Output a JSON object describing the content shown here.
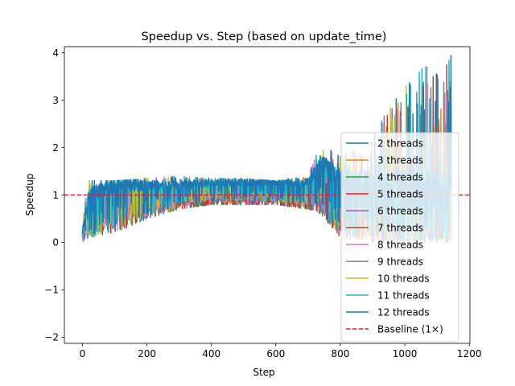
{
  "chart_data": {
    "type": "line",
    "title": "Speedup vs. Step (based on update_time)",
    "xlabel": "Step",
    "ylabel": "Speedup",
    "xlim": [
      -56,
      1202
    ],
    "ylim": [
      -2.13,
      4.13
    ],
    "xticks": [
      0,
      200,
      400,
      600,
      800,
      1000,
      1200
    ],
    "yticks": [
      -2,
      -1,
      0,
      1,
      2,
      3,
      4
    ],
    "grid": false,
    "legend_position": "lower-right",
    "steps": 1145,
    "series": [
      {
        "name": "2 threads",
        "color": "#1f77b4"
      },
      {
        "name": "3 threads",
        "color": "#ff7f0e"
      },
      {
        "name": "4 threads",
        "color": "#2ca02c"
      },
      {
        "name": "5 threads",
        "color": "#d62728"
      },
      {
        "name": "6 threads",
        "color": "#9467bd"
      },
      {
        "name": "7 threads",
        "color": "#8c564b"
      },
      {
        "name": "8 threads",
        "color": "#e377c2"
      },
      {
        "name": "9 threads",
        "color": "#7f7f7f"
      },
      {
        "name": "10 threads",
        "color": "#bcbd22"
      },
      {
        "name": "11 threads",
        "color": "#17becf"
      },
      {
        "name": "12 threads",
        "color": "#1f77b4"
      }
    ],
    "profile": {
      "description_points_x": [
        0,
        20,
        100,
        200,
        300,
        400,
        500,
        600,
        700,
        740,
        800,
        900,
        1000,
        1145
      ],
      "upper_envelope": [
        0.6,
        1.3,
        1.3,
        1.35,
        1.4,
        1.35,
        1.35,
        1.3,
        1.4,
        2.1,
        1.8,
        2.2,
        3.5,
        3.95
      ],
      "lower_envelope": [
        0.0,
        0.1,
        0.2,
        0.5,
        0.7,
        0.8,
        0.8,
        0.8,
        0.7,
        0.6,
        0.1,
        0.0,
        0.0,
        0.0
      ],
      "center": [
        0.2,
        0.9,
        1.1,
        1.1,
        1.1,
        1.15,
        1.15,
        1.15,
        1.15,
        1.5,
        1.2,
        1.1,
        1.0,
        1.0
      ]
    },
    "baseline": {
      "name": "Baseline (1×)",
      "value": 1,
      "color": "#d62728"
    }
  }
}
